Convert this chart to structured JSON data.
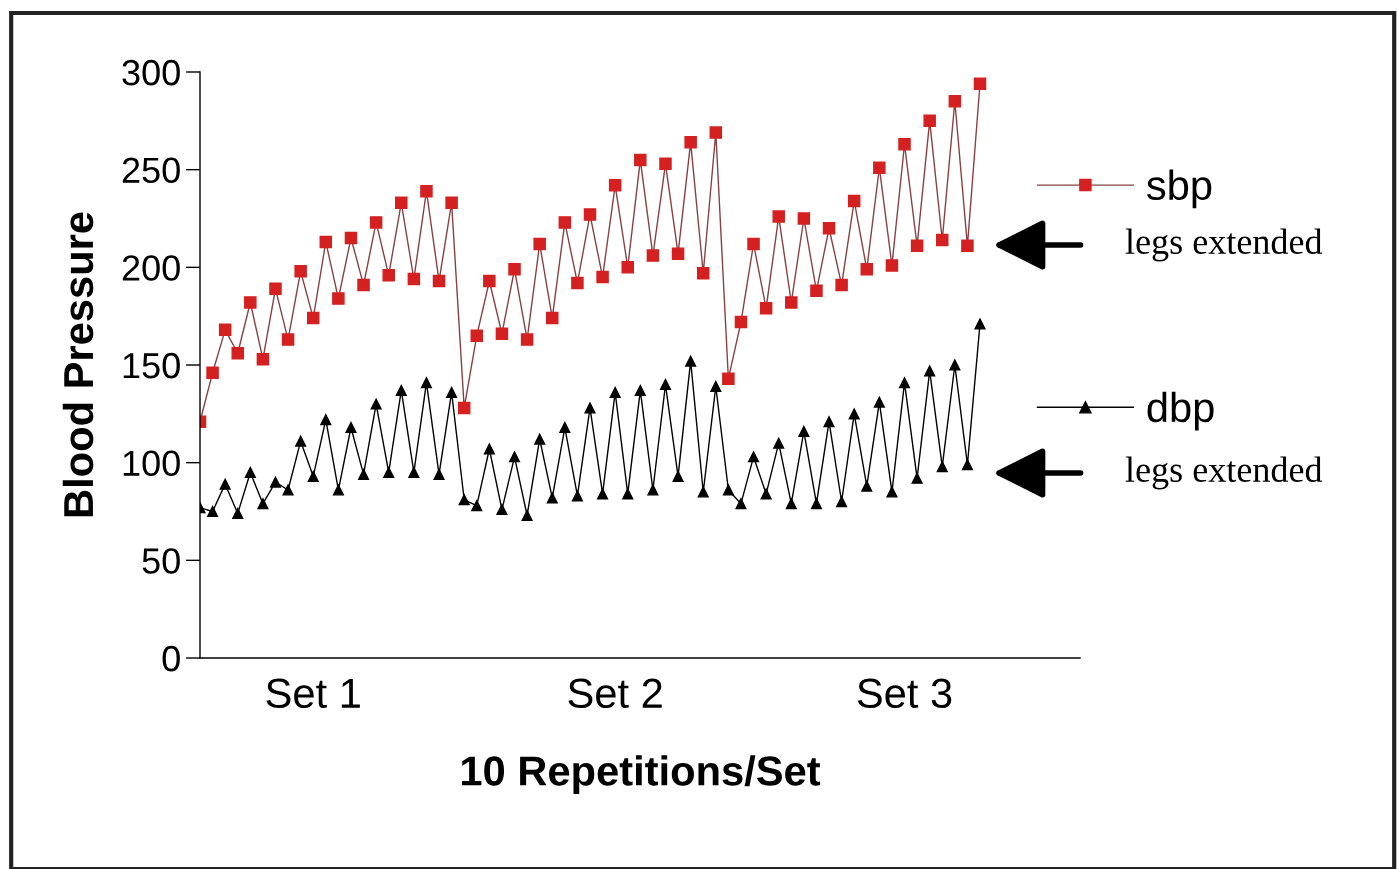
{
  "chart_data": {
    "type": "line",
    "xlabel": "10 Repetitions/Set",
    "ylabel": "Blood Pressure",
    "categories": [
      null,
      null,
      null,
      null,
      null,
      null,
      null,
      null,
      null,
      "Set 1",
      null,
      null,
      null,
      null,
      null,
      null,
      null,
      null,
      null,
      null,
      null,
      null,
      null,
      null,
      null,
      null,
      null,
      null,
      null,
      null,
      null,
      null,
      null,
      "Set 2",
      null,
      null,
      null,
      null,
      null,
      null,
      null,
      null,
      null,
      null,
      null,
      null,
      null,
      null,
      null,
      null,
      null,
      null,
      null,
      null,
      null,
      null,
      "Set 3",
      null,
      null,
      null,
      null,
      null,
      null
    ],
    "ylim": [
      0,
      300
    ],
    "yticks": [
      0,
      50,
      100,
      150,
      200,
      250,
      300
    ],
    "grid": false,
    "legend": "right",
    "series": [
      {
        "name": "sbp",
        "color": "#d42020",
        "marker": "square",
        "values": [
          121,
          146,
          168,
          156,
          182,
          153,
          189,
          163,
          198,
          174,
          213,
          184,
          215,
          191,
          223,
          196,
          233,
          194,
          239,
          193,
          233,
          128,
          165,
          193,
          166,
          199,
          163,
          212,
          174,
          223,
          192,
          227,
          195,
          242,
          200,
          255,
          206,
          253,
          207,
          264,
          197,
          269,
          143,
          172,
          212,
          179,
          226,
          182,
          225,
          188,
          220,
          191,
          234,
          199,
          251,
          201,
          263,
          211,
          275,
          214,
          285,
          211,
          294
        ]
      },
      {
        "name": "dbp",
        "color": "#000000",
        "marker": "triangle",
        "values": [
          77,
          75,
          89,
          74,
          95,
          79,
          90,
          86,
          111,
          93,
          122,
          86,
          118,
          94,
          130,
          95,
          137,
          95,
          141,
          94,
          136,
          81,
          78,
          107,
          76,
          103,
          73,
          112,
          82,
          118,
          83,
          128,
          84,
          136,
          84,
          137,
          86,
          140,
          93,
          152,
          85,
          139,
          86,
          79,
          103,
          84,
          110,
          79,
          116,
          79,
          121,
          80,
          125,
          88,
          131,
          85,
          141,
          92,
          147,
          98,
          150,
          99,
          171
        ]
      }
    ],
    "annotations": [
      "legs extended",
      "legs extended"
    ]
  }
}
